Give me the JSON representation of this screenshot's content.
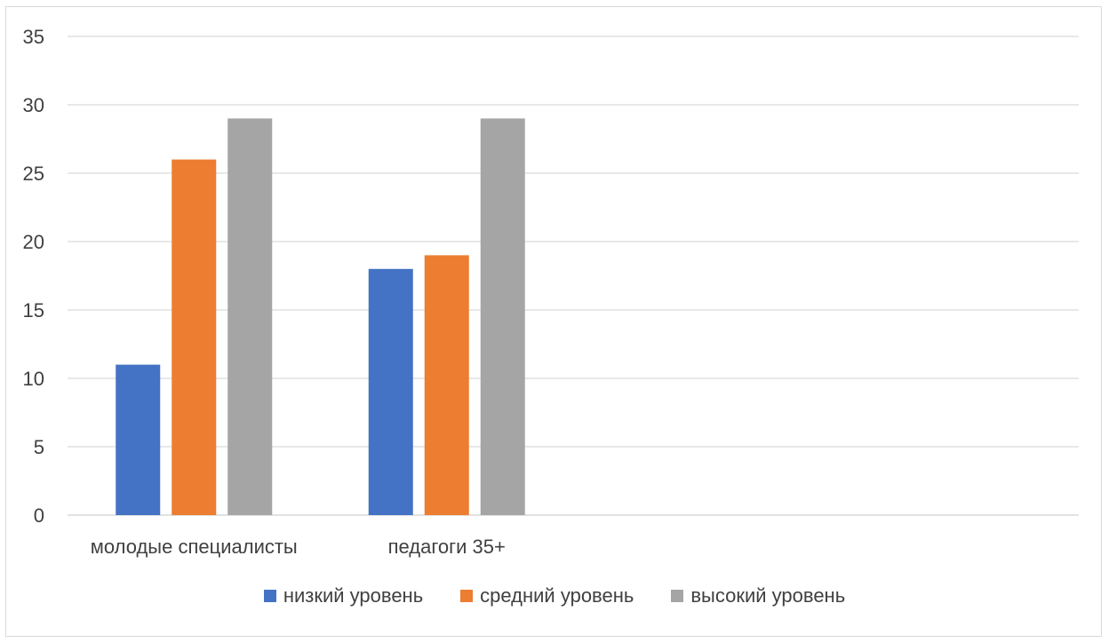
{
  "chart_data": {
    "type": "bar",
    "categories": [
      "молодые специалисты",
      "педагоги 35+"
    ],
    "series": [
      {
        "name": "низкий уровень",
        "values": [
          11,
          18
        ],
        "color": "#4472C4"
      },
      {
        "name": "средний уровень",
        "values": [
          26,
          19
        ],
        "color": "#ED7D31"
      },
      {
        "name": "высокий уровень",
        "values": [
          29,
          29
        ],
        "color": "#A5A5A5"
      }
    ],
    "ylim": [
      0,
      35
    ],
    "yticks": [
      0,
      5,
      10,
      15,
      20,
      25,
      30,
      35
    ],
    "grid": true,
    "legend_position": "bottom",
    "slot_count": 4
  }
}
